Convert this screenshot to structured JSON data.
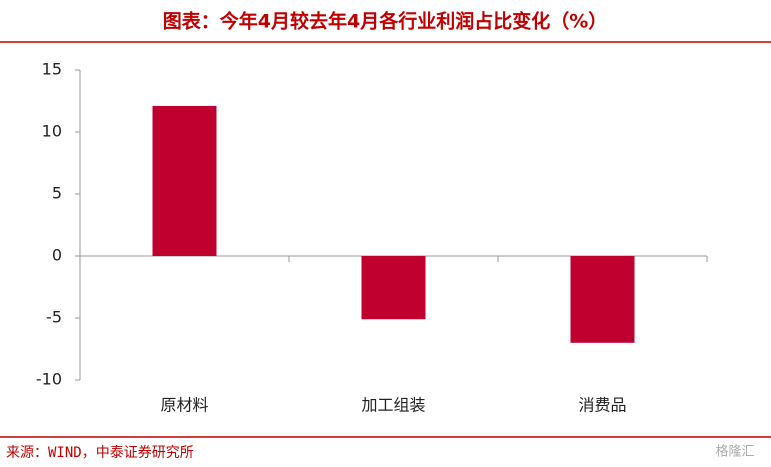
{
  "chart_data": {
    "type": "bar",
    "title": "图表：今年4月较去年4月各行业利润占比变化（%）",
    "categories": [
      "原材料",
      "加工组装",
      "消费品"
    ],
    "values": [
      12.1,
      -5.1,
      -7.0
    ],
    "color": "#c0002f",
    "ylim": [
      -10,
      15
    ],
    "yticks": [
      -10,
      -5,
      0,
      5,
      10,
      15
    ],
    "source": "来源：WIND，中泰证券研究所",
    "watermark": "格隆汇"
  }
}
